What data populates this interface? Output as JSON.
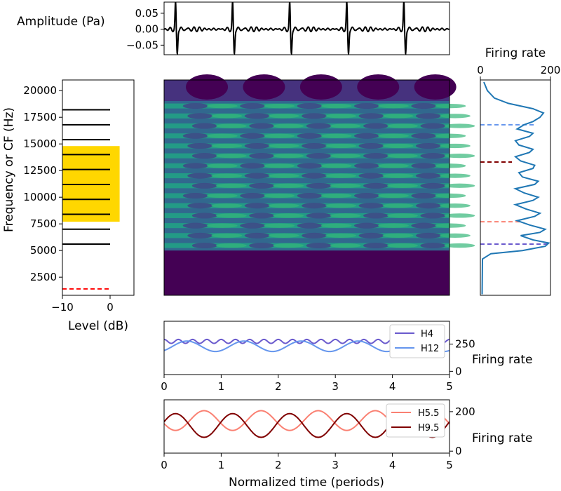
{
  "chart_data": [
    {
      "id": "waveform",
      "type": "line",
      "ylabel": "Amplitude (Pa)",
      "yticks": [
        "0.05",
        "0.00",
        "−0.05"
      ],
      "ytick_values": [
        0.05,
        0.0,
        -0.05
      ],
      "ylim": [
        -0.08,
        0.085
      ],
      "periods": 5,
      "series": [
        {
          "color": "#000000",
          "peak": 0.08,
          "trough": -0.075
        }
      ]
    },
    {
      "id": "spectrum",
      "type": "bar",
      "xlabel": "Level (dB)",
      "ylabel": "Frequency or CF (Hz)",
      "xticks": [
        "−10",
        "0"
      ],
      "xtick_values": [
        -10,
        0
      ],
      "xlim": [
        -10,
        5
      ],
      "yticks": [
        "20000",
        "17500",
        "15000",
        "12500",
        "10000",
        "7500",
        "5000",
        "2500"
      ],
      "ytick_values": [
        20000,
        17500,
        15000,
        12500,
        10000,
        7500,
        5000,
        2500
      ],
      "ylim": [
        800,
        21000
      ],
      "harmonic_frequencies": [
        5600,
        7000,
        8400,
        9800,
        11200,
        12600,
        14000,
        15400,
        16800,
        18200
      ],
      "harmonic_levels": [
        -10,
        -10,
        -10,
        -10,
        -10,
        -10,
        -10,
        -10,
        -10,
        -10
      ],
      "f0": 1400,
      "f0_level": -10,
      "band": {
        "freq_range": [
          7700,
          14800
        ],
        "level_range": [
          -10,
          2
        ],
        "color": "#FFD700"
      },
      "harmonic_color": "#000000",
      "f0_color": "#FF0000"
    },
    {
      "id": "neurogram",
      "type": "heatmap",
      "colormap": "viridis",
      "cf_range": [
        800,
        21000
      ],
      "low_cutoff": 5000,
      "periods": 5
    },
    {
      "id": "average_rate",
      "type": "line",
      "title": "Firing rate",
      "xticks": [
        "0",
        "200"
      ],
      "xtick_values": [
        0,
        200
      ],
      "xlim": [
        0,
        200
      ],
      "ylim": [
        800,
        21000
      ],
      "rate_profile": [
        {
          "cf": 900,
          "rate": 5
        },
        {
          "cf": 4200,
          "rate": 6
        },
        {
          "cf": 4700,
          "rate": 30
        },
        {
          "cf": 5000,
          "rate": 120
        },
        {
          "cf": 5400,
          "rate": 185
        },
        {
          "cf": 5700,
          "rate": 195
        },
        {
          "cf": 6000,
          "rate": 150
        },
        {
          "cf": 6400,
          "rate": 115
        },
        {
          "cf": 6700,
          "rate": 170
        },
        {
          "cf": 7000,
          "rate": 185
        },
        {
          "cf": 7400,
          "rate": 140
        },
        {
          "cf": 7800,
          "rate": 105
        },
        {
          "cf": 8200,
          "rate": 155
        },
        {
          "cf": 8500,
          "rate": 170
        },
        {
          "cf": 8900,
          "rate": 130
        },
        {
          "cf": 9300,
          "rate": 100
        },
        {
          "cf": 9700,
          "rate": 150
        },
        {
          "cf": 10000,
          "rate": 165
        },
        {
          "cf": 10400,
          "rate": 125
        },
        {
          "cf": 10800,
          "rate": 100
        },
        {
          "cf": 11200,
          "rate": 155
        },
        {
          "cf": 11500,
          "rate": 165
        },
        {
          "cf": 11900,
          "rate": 120
        },
        {
          "cf": 12300,
          "rate": 110
        },
        {
          "cf": 12700,
          "rate": 150
        },
        {
          "cf": 13000,
          "rate": 155
        },
        {
          "cf": 13400,
          "rate": 115
        },
        {
          "cf": 13800,
          "rate": 100
        },
        {
          "cf": 14200,
          "rate": 140
        },
        {
          "cf": 14500,
          "rate": 150
        },
        {
          "cf": 14900,
          "rate": 110
        },
        {
          "cf": 15300,
          "rate": 100
        },
        {
          "cf": 15700,
          "rate": 140
        },
        {
          "cf": 16000,
          "rate": 150
        },
        {
          "cf": 16400,
          "rate": 105
        },
        {
          "cf": 16800,
          "rate": 125
        },
        {
          "cf": 17100,
          "rate": 150
        },
        {
          "cf": 17500,
          "rate": 170
        },
        {
          "cf": 17900,
          "rate": 180
        },
        {
          "cf": 18300,
          "rate": 150
        },
        {
          "cf": 18800,
          "rate": 80
        },
        {
          "cf": 19300,
          "rate": 40
        },
        {
          "cf": 20000,
          "rate": 20
        },
        {
          "cf": 20800,
          "rate": 10
        }
      ],
      "marker_lines": [
        {
          "cf": 5600,
          "rate": 200,
          "color": "#6A5ACD"
        },
        {
          "cf": 7700,
          "rate": 115,
          "color": "#FA8072"
        },
        {
          "cf": 13300,
          "rate": 90,
          "color": "#800000"
        },
        {
          "cf": 16800,
          "rate": 155,
          "color": "#6495ED"
        }
      ],
      "series_color": "#1F77B4"
    },
    {
      "id": "timecourse_h4_h12",
      "type": "line",
      "ylabel": "Firing rate",
      "xticks": [
        "0",
        "1",
        "2",
        "3",
        "4",
        "5"
      ],
      "xtick_values": [
        0,
        1,
        2,
        3,
        4,
        5
      ],
      "xlim": [
        0,
        5
      ],
      "yticks": [
        "250",
        "0"
      ],
      "ytick_values": [
        250,
        0
      ],
      "ylim": [
        -30,
        460
      ],
      "series": [
        {
          "name": "H4",
          "color": "#6A5ACD",
          "mean": 275,
          "amplitude": 18,
          "cycles_per_period": 4,
          "phase": 0.0
        },
        {
          "name": "H12",
          "color": "#6495ED",
          "mean": 230,
          "amplitude": 48,
          "cycles_per_period": 1,
          "phase": 0.4
        }
      ]
    },
    {
      "id": "timecourse_h55_h95",
      "type": "line",
      "ylabel": "Firing rate",
      "xlabel": "Normalized time (periods)",
      "xticks": [
        "0",
        "1",
        "2",
        "3",
        "4",
        "5"
      ],
      "xtick_values": [
        0,
        1,
        2,
        3,
        4,
        5
      ],
      "xlim": [
        0,
        5
      ],
      "yticks": [
        "200",
        "0"
      ],
      "ytick_values": [
        200,
        0
      ],
      "ylim": [
        -10,
        260
      ],
      "series": [
        {
          "name": "H5.5",
          "color": "#FA8072",
          "mean": 155,
          "amplitude": 50,
          "cycles_per_period": 1,
          "phase": 0.7
        },
        {
          "name": "H9.5",
          "color": "#800000",
          "mean": 130,
          "amplitude": 60,
          "cycles_per_period": 1,
          "phase": 0.2
        }
      ]
    }
  ]
}
